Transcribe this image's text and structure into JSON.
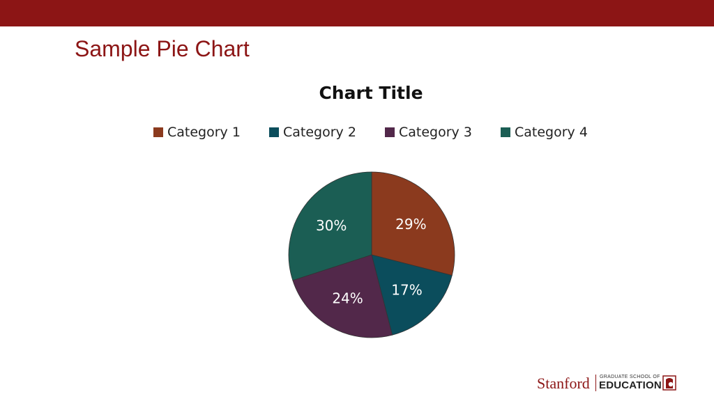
{
  "slide": {
    "title": "Sample Pie Chart",
    "accent_color": "#8c1515"
  },
  "chart_data": {
    "type": "pie",
    "title": "Chart Title",
    "legend_position": "top",
    "categories": [
      "Category 1",
      "Category 2",
      "Category 3",
      "Category 4"
    ],
    "values": [
      29,
      17,
      24,
      30
    ],
    "labels": [
      "29%",
      "17%",
      "24%",
      "30%"
    ],
    "colors": [
      "#8b3a1e",
      "#0b4d5c",
      "#52284a",
      "#1b5e54"
    ]
  },
  "footer": {
    "logo_name": "Stanford",
    "logo_line1": "GRADUATE SCHOOL OF",
    "logo_line2": "EDUCATION",
    "logo_icon": "gse-mark-icon"
  }
}
